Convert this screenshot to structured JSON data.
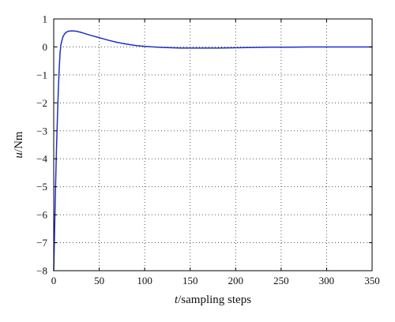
{
  "chart_data": {
    "type": "line",
    "title": "",
    "xlabel": {
      "var": "t",
      "text": "/sampling steps"
    },
    "ylabel": {
      "var": "u",
      "text": "/Nm"
    },
    "xlim": [
      0,
      350
    ],
    "ylim": [
      -8,
      1
    ],
    "x_ticks": [
      0,
      50,
      100,
      150,
      200,
      250,
      300,
      350
    ],
    "x_tick_labels": [
      "0",
      "50",
      "100",
      "150",
      "200",
      "250",
      "300",
      "350"
    ],
    "y_ticks": [
      1,
      0,
      -1,
      -2,
      -3,
      -4,
      -5,
      -6,
      -7,
      -8
    ],
    "y_tick_labels": [
      "1",
      "0",
      "−1",
      "−2",
      "−3",
      "−4",
      "−5",
      "−6",
      "−7",
      "−8"
    ],
    "grid": true,
    "series": [
      {
        "color": "#1f2fc8",
        "x": [
          0,
          1,
          2,
          3,
          4,
          5,
          6,
          7,
          8,
          10,
          12,
          14,
          16,
          18,
          20,
          22,
          25,
          30,
          35,
          40,
          50,
          60,
          70,
          80,
          90,
          100,
          110,
          120,
          130,
          140,
          150,
          160,
          180,
          200,
          220,
          240,
          260,
          280,
          300,
          320,
          350
        ],
        "y": [
          -8.0,
          -6.5,
          -5.0,
          -3.7,
          -2.6,
          -1.6,
          -0.8,
          -0.2,
          0.1,
          0.35,
          0.47,
          0.53,
          0.56,
          0.57,
          0.57,
          0.57,
          0.56,
          0.52,
          0.47,
          0.42,
          0.33,
          0.24,
          0.16,
          0.1,
          0.05,
          0.02,
          0.0,
          -0.02,
          -0.03,
          -0.04,
          -0.04,
          -0.04,
          -0.04,
          -0.03,
          -0.02,
          -0.01,
          -0.01,
          0.0,
          0.0,
          0.0,
          0.0
        ]
      }
    ]
  },
  "colors": {
    "line": "#1f2fc8",
    "axes": "#000000",
    "grid": "#555555"
  }
}
